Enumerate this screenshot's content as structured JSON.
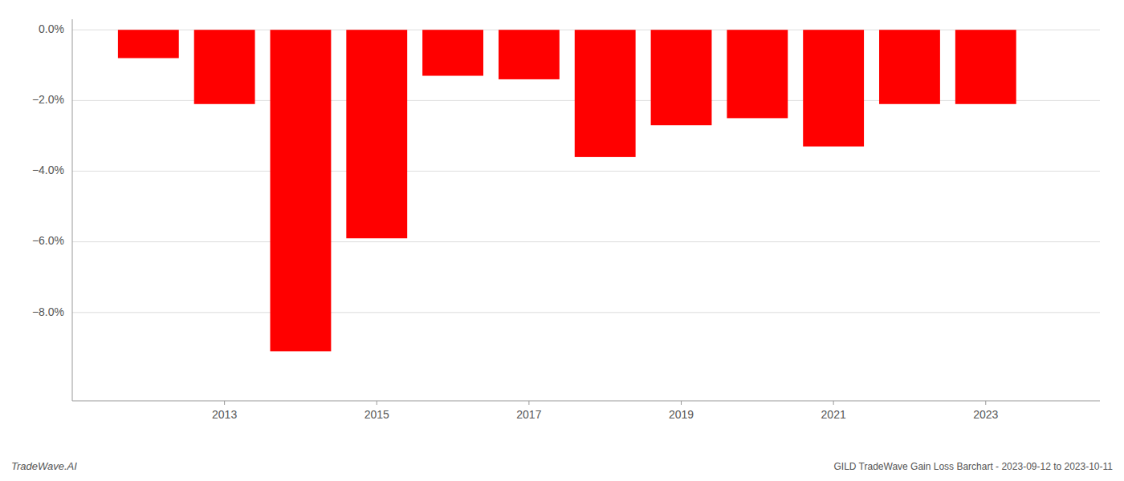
{
  "chart_data": {
    "type": "bar",
    "x": [
      2012,
      2013,
      2014,
      2015,
      2016,
      2017,
      2018,
      2019,
      2020,
      2021,
      2022,
      2023
    ],
    "values": [
      -0.008,
      -0.021,
      -0.091,
      -0.059,
      -0.013,
      -0.014,
      -0.036,
      -0.027,
      -0.025,
      -0.033,
      -0.021,
      -0.021
    ],
    "color": "#ff0000",
    "xlim": [
      2011.0,
      2024.5
    ],
    "xticks": [
      2013,
      2015,
      2017,
      2019,
      2021,
      2023
    ],
    "ylim": [
      -0.105,
      0.003
    ],
    "yticks": [
      {
        "value": 0.0,
        "label": "0.0%"
      },
      {
        "value": -0.02,
        "label": "−2.0%"
      },
      {
        "value": -0.04,
        "label": "−4.0%"
      },
      {
        "value": -0.06,
        "label": "−6.0%"
      },
      {
        "value": -0.08,
        "label": "−8.0%"
      }
    ],
    "grid": true,
    "annotations": [
      "TradeWave.AI",
      "GILD TradeWave Gain Loss Barchart - 2023-09-12 to 2023-10-11"
    ]
  }
}
